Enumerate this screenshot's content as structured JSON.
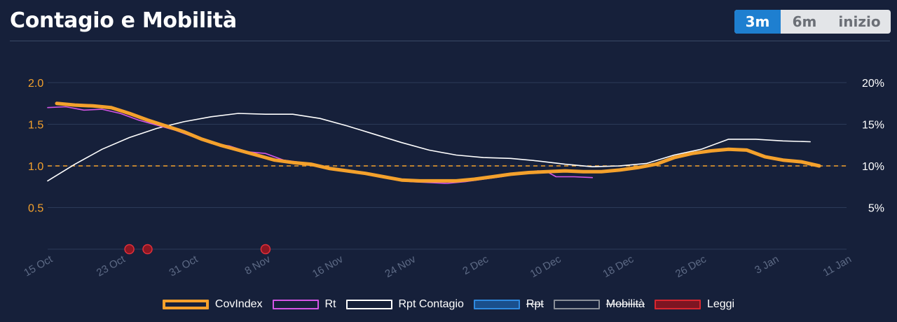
{
  "header": {
    "title": "Contagio e Mobilità",
    "ranges": [
      {
        "label": "3m",
        "active": true
      },
      {
        "label": "6m",
        "active": false
      },
      {
        "label": "inizio",
        "active": false
      }
    ]
  },
  "colors": {
    "background": "#16203a",
    "covindex": "#f4a12c",
    "rt": "#d455e6",
    "rpt_contagio": "#ffffff",
    "rpt": "#1e6fc8",
    "mobilita": "#8a8f98",
    "leggi": "#c41a26",
    "reference_line": "#f4a12c",
    "left_axis_text": "#f4a12c",
    "right_axis_text": "#ffffff",
    "x_axis_text": "#5d6a85"
  },
  "legend": [
    {
      "key": "covindex",
      "label": "CovIndex",
      "hidden": false
    },
    {
      "key": "rt",
      "label": "Rt",
      "hidden": false
    },
    {
      "key": "rpt_contagio",
      "label": "Rpt Contagio",
      "hidden": false
    },
    {
      "key": "rpt",
      "label": "Rpt",
      "hidden": true
    },
    {
      "key": "mobilita",
      "label": "Mobilità",
      "hidden": true
    },
    {
      "key": "leggi",
      "label": "Leggi",
      "hidden": false
    }
  ],
  "chart_data": {
    "type": "line",
    "x_axis": {
      "type": "date",
      "ticks": [
        {
          "date": "2020-10-15",
          "label": "15 Oct"
        },
        {
          "date": "2020-10-23",
          "label": "23 Oct"
        },
        {
          "date": "2020-10-31",
          "label": "31 Oct"
        },
        {
          "date": "2020-11-08",
          "label": "8 Nov"
        },
        {
          "date": "2020-11-16",
          "label": "16 Nov"
        },
        {
          "date": "2020-11-24",
          "label": "24 Nov"
        },
        {
          "date": "2020-12-02",
          "label": "2 Dec"
        },
        {
          "date": "2020-12-10",
          "label": "10 Dec"
        },
        {
          "date": "2020-12-18",
          "label": "18 Dec"
        },
        {
          "date": "2020-12-26",
          "label": "26 Dec"
        },
        {
          "date": "2021-01-03",
          "label": "3 Jan"
        },
        {
          "date": "2021-01-11",
          "label": "11 Jan"
        }
      ],
      "range": [
        "2020-10-15",
        "2021-01-11"
      ]
    },
    "y_left": {
      "ticks": [
        "0.5",
        "1.0",
        "1.5",
        "2.0"
      ],
      "range": [
        0,
        2
      ]
    },
    "y_right": {
      "ticks": [
        "5%",
        "10%",
        "15%",
        "20%"
      ],
      "range": [
        0,
        20
      ]
    },
    "reference_line": {
      "axis": "left",
      "value": 1.0,
      "style": "dashed"
    },
    "grid": true,
    "legend_position": "bottom",
    "series": [
      {
        "name": "CovIndex",
        "axis": "left",
        "points": [
          [
            "2020-10-16",
            1.75
          ],
          [
            "2020-10-18",
            1.73
          ],
          [
            "2020-10-20",
            1.72
          ],
          [
            "2020-10-22",
            1.7
          ],
          [
            "2020-10-24",
            1.63
          ],
          [
            "2020-10-26",
            1.55
          ],
          [
            "2020-10-28",
            1.48
          ],
          [
            "2020-10-30",
            1.41
          ],
          [
            "2020-11-01",
            1.32
          ],
          [
            "2020-11-03",
            1.25
          ],
          [
            "2020-11-05",
            1.19
          ],
          [
            "2020-11-07",
            1.13
          ],
          [
            "2020-11-09",
            1.07
          ],
          [
            "2020-11-11",
            1.04
          ],
          [
            "2020-11-13",
            1.02
          ],
          [
            "2020-11-15",
            0.97
          ],
          [
            "2020-11-17",
            0.94
          ],
          [
            "2020-11-19",
            0.91
          ],
          [
            "2020-11-21",
            0.87
          ],
          [
            "2020-11-23",
            0.83
          ],
          [
            "2020-11-25",
            0.82
          ],
          [
            "2020-11-27",
            0.82
          ],
          [
            "2020-11-29",
            0.82
          ],
          [
            "2020-12-01",
            0.84
          ],
          [
            "2020-12-03",
            0.87
          ],
          [
            "2020-12-05",
            0.9
          ],
          [
            "2020-12-07",
            0.92
          ],
          [
            "2020-12-09",
            0.93
          ],
          [
            "2020-12-11",
            0.94
          ],
          [
            "2020-12-13",
            0.93
          ],
          [
            "2020-12-15",
            0.93
          ],
          [
            "2020-12-17",
            0.95
          ],
          [
            "2020-12-19",
            0.98
          ],
          [
            "2020-12-21",
            1.02
          ],
          [
            "2020-12-23",
            1.1
          ],
          [
            "2020-12-25",
            1.15
          ],
          [
            "2020-12-27",
            1.18
          ],
          [
            "2020-12-29",
            1.2
          ],
          [
            "2020-12-31",
            1.19
          ],
          [
            "2021-01-02",
            1.11
          ],
          [
            "2021-01-04",
            1.07
          ],
          [
            "2021-01-06",
            1.05
          ],
          [
            "2021-01-08",
            1.0
          ]
        ]
      },
      {
        "name": "Rt",
        "axis": "left",
        "points": [
          [
            "2020-10-15",
            1.7
          ],
          [
            "2020-10-17",
            1.71
          ],
          [
            "2020-10-19",
            1.67
          ],
          [
            "2020-10-21",
            1.68
          ],
          [
            "2020-10-23",
            1.63
          ],
          [
            "2020-10-25",
            1.55
          ],
          [
            "2020-10-27",
            1.49
          ],
          [
            "2020-10-29",
            1.43
          ],
          [
            "2020-10-31",
            1.35
          ],
          [
            "2020-11-02",
            1.27
          ],
          [
            "2020-11-04",
            1.24
          ],
          [
            "2020-11-06",
            1.17
          ],
          [
            "2020-11-08",
            1.15
          ],
          [
            "2020-11-10",
            1.07
          ],
          [
            "2020-11-12",
            1.04
          ],
          [
            "2020-11-14",
            0.99
          ],
          [
            "2020-11-16",
            0.95
          ],
          [
            "2020-11-18",
            0.92
          ],
          [
            "2020-11-20",
            0.88
          ],
          [
            "2020-11-22",
            0.84
          ],
          [
            "2020-11-24",
            0.81
          ],
          [
            "2020-11-26",
            0.8
          ],
          [
            "2020-11-28",
            0.79
          ],
          [
            "2020-11-30",
            0.81
          ],
          [
            "2020-12-02",
            0.84
          ],
          [
            "2020-12-04",
            0.87
          ],
          [
            "2020-12-06",
            0.91
          ],
          [
            "2020-12-08",
            0.94
          ],
          [
            "2020-12-09",
            0.93
          ],
          [
            "2020-12-10",
            0.87
          ],
          [
            "2020-12-12",
            0.87
          ],
          [
            "2020-12-14",
            0.86
          ]
        ]
      },
      {
        "name": "Rpt Contagio",
        "axis": "right",
        "points": [
          [
            "2020-10-15",
            8.2
          ],
          [
            "2020-10-18",
            10.2
          ],
          [
            "2020-10-21",
            12.0
          ],
          [
            "2020-10-24",
            13.4
          ],
          [
            "2020-10-27",
            14.5
          ],
          [
            "2020-10-30",
            15.3
          ],
          [
            "2020-11-02",
            15.9
          ],
          [
            "2020-11-05",
            16.3
          ],
          [
            "2020-11-08",
            16.2
          ],
          [
            "2020-11-11",
            16.2
          ],
          [
            "2020-11-14",
            15.7
          ],
          [
            "2020-11-17",
            14.8
          ],
          [
            "2020-11-20",
            13.8
          ],
          [
            "2020-11-23",
            12.8
          ],
          [
            "2020-11-26",
            11.9
          ],
          [
            "2020-11-29",
            11.3
          ],
          [
            "2020-12-02",
            11.0
          ],
          [
            "2020-12-05",
            10.9
          ],
          [
            "2020-12-08",
            10.6
          ],
          [
            "2020-12-11",
            10.2
          ],
          [
            "2020-12-14",
            9.9
          ],
          [
            "2020-12-17",
            10.0
          ],
          [
            "2020-12-20",
            10.3
          ],
          [
            "2020-12-23",
            11.3
          ],
          [
            "2020-12-26",
            12.0
          ],
          [
            "2020-12-29",
            13.2
          ],
          [
            "2021-01-01",
            13.2
          ],
          [
            "2021-01-04",
            13.0
          ],
          [
            "2021-01-07",
            12.9
          ]
        ]
      }
    ],
    "events": {
      "name": "Leggi",
      "dates": [
        "2020-10-24",
        "2020-10-26",
        "2020-11-08"
      ]
    }
  }
}
